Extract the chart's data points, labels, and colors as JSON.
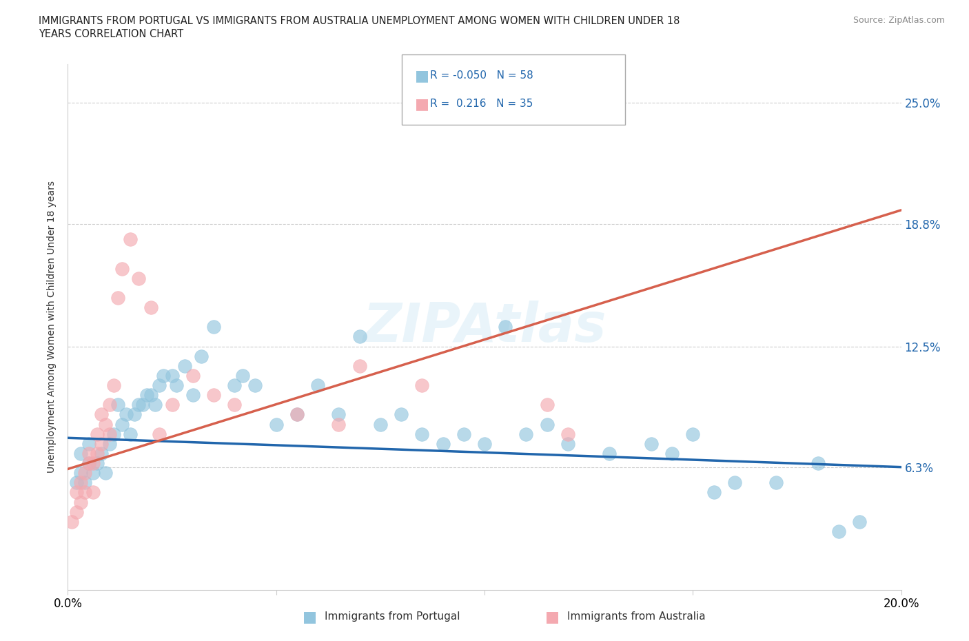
{
  "title_line1": "IMMIGRANTS FROM PORTUGAL VS IMMIGRANTS FROM AUSTRALIA UNEMPLOYMENT AMONG WOMEN WITH CHILDREN UNDER 18",
  "title_line2": "YEARS CORRELATION CHART",
  "source": "Source: ZipAtlas.com",
  "ylabel": "Unemployment Among Women with Children Under 18 years",
  "xlim": [
    0.0,
    20.0
  ],
  "ylim": [
    0.0,
    27.0
  ],
  "yticks": [
    6.3,
    12.5,
    18.8,
    25.0
  ],
  "xticks": [
    0.0,
    5.0,
    10.0,
    15.0,
    20.0
  ],
  "ytick_labels": [
    "6.3%",
    "12.5%",
    "18.8%",
    "25.0%"
  ],
  "portugal_R": -0.05,
  "portugal_N": 58,
  "australia_R": 0.216,
  "australia_N": 35,
  "portugal_color": "#92c5de",
  "australia_color": "#f4a9b0",
  "trendline_portugal_color": "#2166ac",
  "trendline_australia_color": "#d6604d",
  "portugal_x": [
    0.2,
    0.3,
    0.3,
    0.4,
    0.5,
    0.5,
    0.6,
    0.7,
    0.8,
    0.9,
    1.0,
    1.1,
    1.2,
    1.3,
    1.4,
    1.5,
    1.6,
    1.7,
    1.8,
    1.9,
    2.0,
    2.1,
    2.2,
    2.3,
    2.5,
    2.6,
    2.8,
    3.0,
    3.2,
    3.5,
    4.0,
    4.2,
    4.5,
    5.0,
    5.5,
    6.0,
    6.5,
    7.0,
    7.5,
    8.0,
    8.5,
    9.0,
    9.5,
    10.0,
    10.5,
    11.0,
    11.5,
    12.0,
    13.0,
    14.0,
    14.5,
    15.0,
    15.5,
    16.0,
    17.0,
    18.0,
    18.5,
    19.0
  ],
  "portugal_y": [
    5.5,
    6.0,
    7.0,
    5.5,
    6.5,
    7.5,
    6.0,
    6.5,
    7.0,
    6.0,
    7.5,
    8.0,
    9.5,
    8.5,
    9.0,
    8.0,
    9.0,
    9.5,
    9.5,
    10.0,
    10.0,
    9.5,
    10.5,
    11.0,
    11.0,
    10.5,
    11.5,
    10.0,
    12.0,
    13.5,
    10.5,
    11.0,
    10.5,
    8.5,
    9.0,
    10.5,
    9.0,
    13.0,
    8.5,
    9.0,
    8.0,
    7.5,
    8.0,
    7.5,
    13.5,
    8.0,
    8.5,
    7.5,
    7.0,
    7.5,
    7.0,
    8.0,
    5.0,
    5.5,
    5.5,
    6.5,
    3.0,
    3.5
  ],
  "australia_x": [
    0.1,
    0.2,
    0.2,
    0.3,
    0.3,
    0.4,
    0.4,
    0.5,
    0.5,
    0.6,
    0.6,
    0.7,
    0.7,
    0.8,
    0.8,
    0.9,
    1.0,
    1.0,
    1.1,
    1.2,
    1.3,
    1.5,
    1.7,
    2.0,
    2.2,
    2.5,
    3.0,
    3.5,
    4.0,
    5.5,
    6.5,
    7.0,
    8.5,
    11.5,
    12.0
  ],
  "australia_y": [
    3.5,
    4.0,
    5.0,
    4.5,
    5.5,
    6.0,
    5.0,
    6.5,
    7.0,
    5.0,
    6.5,
    7.0,
    8.0,
    7.5,
    9.0,
    8.5,
    8.0,
    9.5,
    10.5,
    15.0,
    16.5,
    18.0,
    16.0,
    14.5,
    8.0,
    9.5,
    11.0,
    10.0,
    9.5,
    9.0,
    8.5,
    11.5,
    10.5,
    9.5,
    8.0
  ],
  "trendline_portugal_start_y": 7.8,
  "trendline_portugal_end_y": 6.3,
  "trendline_australia_start_y": 6.2,
  "trendline_australia_end_y": 19.5
}
